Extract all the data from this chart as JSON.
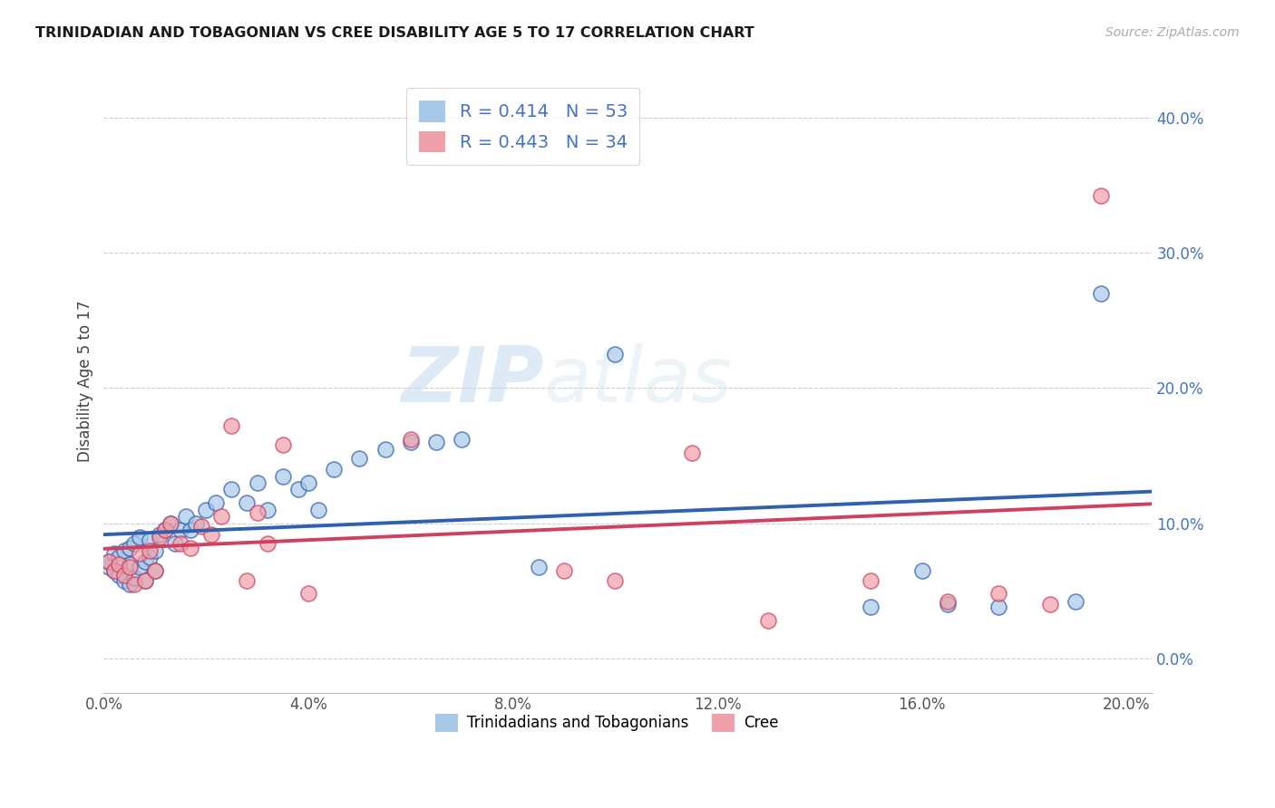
{
  "title": "TRINIDADIAN AND TOBAGONIAN VS CREE DISABILITY AGE 5 TO 17 CORRELATION CHART",
  "source": "Source: ZipAtlas.com",
  "ylabel": "Disability Age 5 to 17",
  "r_blue": 0.414,
  "n_blue": 53,
  "r_pink": 0.443,
  "n_pink": 34,
  "xlim": [
    0.0,
    0.205
  ],
  "ylim": [
    -0.025,
    0.435
  ],
  "ytick_positions": [
    0.0,
    0.1,
    0.2,
    0.3,
    0.4
  ],
  "xtick_positions": [
    0.0,
    0.04,
    0.08,
    0.12,
    0.16,
    0.2
  ],
  "blue_color": "#a8c8e8",
  "pink_color": "#f0a0a8",
  "blue_line_color": "#3060b0",
  "pink_line_color": "#d04060",
  "legend_label_blue": "Trinidadians and Tobagonians",
  "legend_label_pink": "Cree",
  "watermark_zip": "ZIP",
  "watermark_atlas": "atlas",
  "blue_x": [
    0.001,
    0.001,
    0.002,
    0.002,
    0.003,
    0.003,
    0.004,
    0.004,
    0.005,
    0.005,
    0.005,
    0.006,
    0.006,
    0.007,
    0.007,
    0.008,
    0.008,
    0.009,
    0.009,
    0.01,
    0.01,
    0.011,
    0.012,
    0.013,
    0.014,
    0.015,
    0.016,
    0.017,
    0.018,
    0.02,
    0.022,
    0.025,
    0.028,
    0.03,
    0.032,
    0.035,
    0.038,
    0.04,
    0.042,
    0.045,
    0.05,
    0.055,
    0.06,
    0.065,
    0.07,
    0.085,
    0.1,
    0.15,
    0.16,
    0.165,
    0.175,
    0.19,
    0.195
  ],
  "blue_y": [
    0.068,
    0.072,
    0.065,
    0.078,
    0.062,
    0.075,
    0.058,
    0.08,
    0.055,
    0.07,
    0.082,
    0.06,
    0.085,
    0.068,
    0.09,
    0.072,
    0.058,
    0.075,
    0.088,
    0.065,
    0.08,
    0.092,
    0.095,
    0.1,
    0.085,
    0.095,
    0.105,
    0.095,
    0.1,
    0.11,
    0.115,
    0.125,
    0.115,
    0.13,
    0.11,
    0.135,
    0.125,
    0.13,
    0.11,
    0.14,
    0.148,
    0.155,
    0.16,
    0.16,
    0.162,
    0.068,
    0.225,
    0.038,
    0.065,
    0.04,
    0.038,
    0.042,
    0.27
  ],
  "pink_x": [
    0.001,
    0.002,
    0.003,
    0.004,
    0.005,
    0.006,
    0.007,
    0.008,
    0.009,
    0.01,
    0.011,
    0.012,
    0.013,
    0.015,
    0.017,
    0.019,
    0.021,
    0.023,
    0.025,
    0.028,
    0.03,
    0.032,
    0.035,
    0.04,
    0.06,
    0.09,
    0.1,
    0.115,
    0.13,
    0.15,
    0.165,
    0.175,
    0.185,
    0.195
  ],
  "pink_y": [
    0.072,
    0.065,
    0.07,
    0.062,
    0.068,
    0.055,
    0.078,
    0.058,
    0.08,
    0.065,
    0.09,
    0.095,
    0.1,
    0.085,
    0.082,
    0.098,
    0.092,
    0.105,
    0.172,
    0.058,
    0.108,
    0.085,
    0.158,
    0.048,
    0.162,
    0.065,
    0.058,
    0.152,
    0.028,
    0.058,
    0.042,
    0.048,
    0.04,
    0.342
  ]
}
